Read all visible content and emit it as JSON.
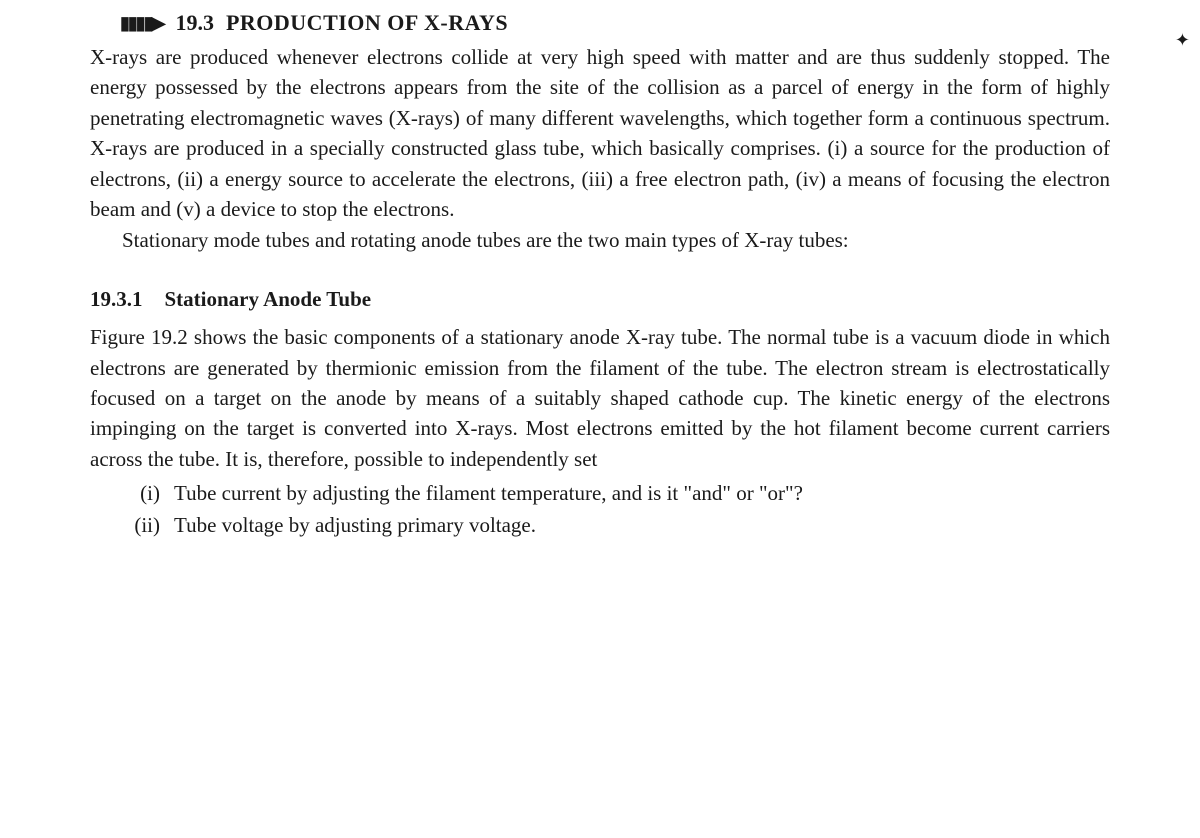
{
  "section": {
    "marker_glyph": "▮▮▮▮▶",
    "number": "19.3",
    "title": "PRODUCTION OF X-RAYS"
  },
  "para1": "X-rays are produced whenever electrons collide at very high speed with matter and are thus suddenly stopped. The energy possessed by the electrons appears from the site of the collision as a parcel of energy in the form of highly penetrating electromagnetic waves (X-rays) of many different wavelengths, which together form a continuous spectrum. X-rays are produced in a specially constructed glass tube, which basically comprises. (i) a source for the production of electrons, (ii) a energy source to accelerate the electrons, (iii) a free electron path, (iv) a means of focusing the electron beam and (v) a device to stop the electrons.",
  "para2": "Stationary mode tubes and rotating anode tubes are the two main types of X-ray tubes:",
  "subsection": {
    "number": "19.3.1",
    "title": "Stationary Anode Tube"
  },
  "para3": "Figure 19.2 shows the basic components of a stationary anode X-ray tube. The normal tube is a vacuum diode in which electrons are generated by thermionic emission from the filament of the tube. The electron stream is electrostatically focused on a target on the anode by means of a suitably shaped cathode cup. The kinetic energy of the electrons impinging on the target is converted into X-rays. Most electrons emitted by the hot filament become current carriers across the tube. It is, therefore, possible to independently set",
  "list": [
    {
      "marker": "(i)",
      "text": "Tube current by adjusting the filament temperature, and is it \"and\" or \"or\"?"
    },
    {
      "marker": "(ii)",
      "text": "Tube voltage by adjusting primary voltage."
    }
  ],
  "cursor_glyph": "✦"
}
